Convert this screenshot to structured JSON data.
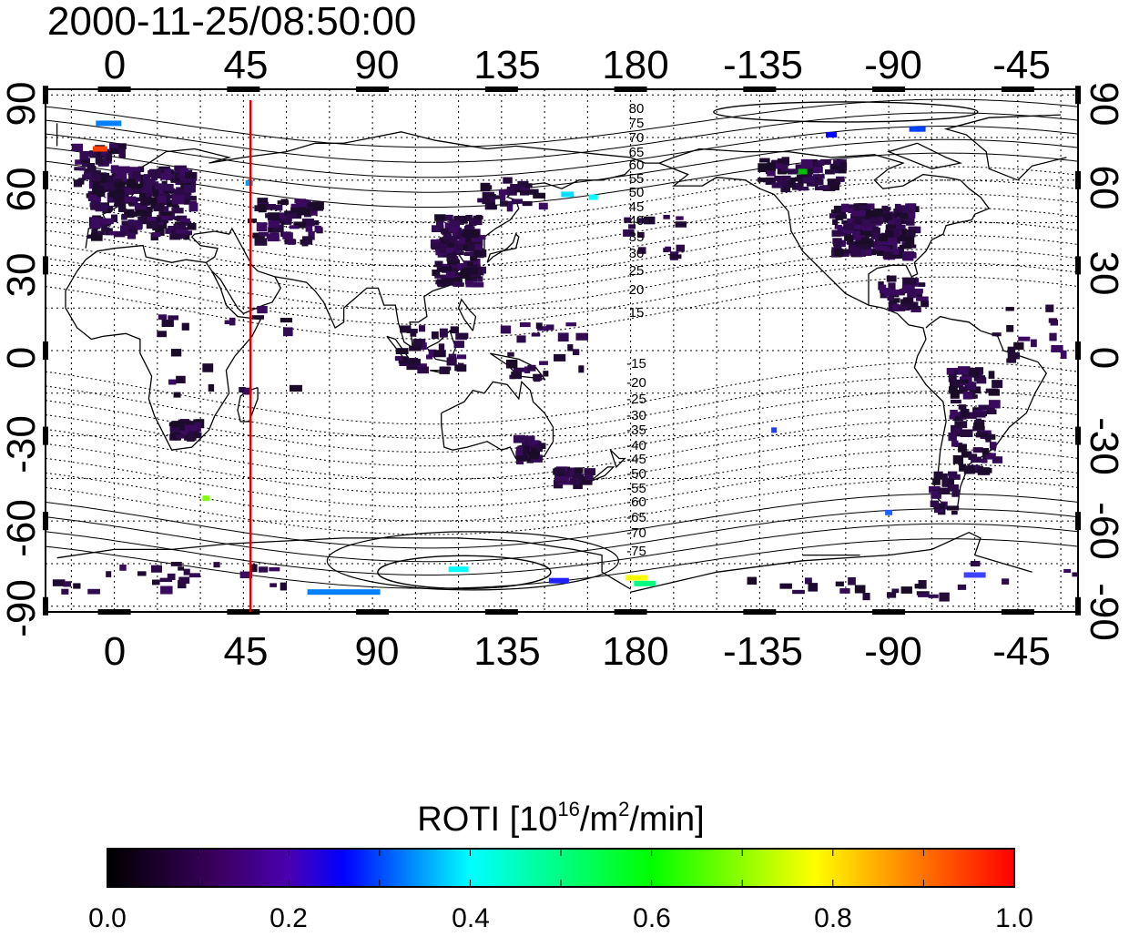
{
  "timestamp": "2000-11-25/08:50:00",
  "map": {
    "lon_ticks": [
      "0",
      "45",
      "90",
      "135",
      "180",
      "-135",
      "-90",
      "-45"
    ],
    "lat_ticks": [
      "90",
      "60",
      "30",
      "0",
      "-30",
      "-60",
      "-90"
    ],
    "contour_labels_north": [
      "80",
      "75",
      "70",
      "65",
      "60",
      "55",
      "50",
      "45",
      "40",
      "35",
      "30",
      "25",
      "20",
      "15"
    ],
    "contour_labels_south": [
      "-15",
      "-20",
      "-25",
      "-30",
      "-35",
      "-40",
      "-45",
      "-50",
      "-55",
      "-60",
      "-65",
      "-70",
      "-75"
    ],
    "marker_longitude": 47.5,
    "marker_color": "#dd0000"
  },
  "colorbar": {
    "title": "ROTI",
    "unit_prefix": "[10",
    "unit_exp1": "16",
    "unit_mid": "/m",
    "unit_exp2": "2",
    "unit_suffix": "/min]",
    "tick_labels": [
      "0.0",
      "0.2",
      "0.4",
      "0.6",
      "0.8",
      "1.0"
    ],
    "range": [
      0.0,
      1.0
    ],
    "colors": [
      "#000000",
      "#5a0090",
      "#0000ff",
      "#00ffff",
      "#00ff00",
      "#ffff00",
      "#ff0000"
    ]
  }
}
